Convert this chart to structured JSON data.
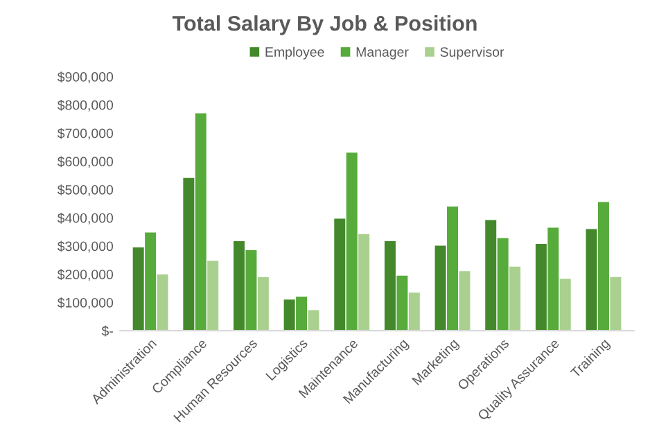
{
  "chart_data": {
    "type": "bar",
    "title": "Total Salary By Job & Position",
    "categories": [
      "Administration",
      "Compliance",
      "Human Resources",
      "Logistics",
      "Maintenance",
      "Manufacturing",
      "Marketing",
      "Operations",
      "Quality Assurance",
      "Training"
    ],
    "series": [
      {
        "name": "Employee",
        "color": "#43892b",
        "values": [
          295000,
          541000,
          317000,
          110000,
          397000,
          317000,
          301000,
          392000,
          307000,
          360000
        ]
      },
      {
        "name": "Manager",
        "color": "#56ab3a",
        "values": [
          348000,
          770000,
          285000,
          121000,
          631000,
          195000,
          440000,
          328000,
          365000,
          456000
        ]
      },
      {
        "name": "Supervisor",
        "color": "#a9d08e",
        "values": [
          199000,
          248000,
          190000,
          73000,
          342000,
          135000,
          211000,
          227000,
          184000,
          190000
        ]
      }
    ],
    "ylim": [
      0,
      900000
    ],
    "yticks": [
      {
        "value": 0,
        "label": "$-"
      },
      {
        "value": 100000,
        "label": "$100,000"
      },
      {
        "value": 200000,
        "label": "$200,000"
      },
      {
        "value": 300000,
        "label": "$300,000"
      },
      {
        "value": 400000,
        "label": "$400,000"
      },
      {
        "value": 500000,
        "label": "$500,000"
      },
      {
        "value": 600000,
        "label": "$600,000"
      },
      {
        "value": 700000,
        "label": "$700,000"
      },
      {
        "value": 800000,
        "label": "$800,000"
      },
      {
        "value": 900000,
        "label": "$900,000"
      }
    ],
    "grid": false,
    "legend": "top"
  }
}
